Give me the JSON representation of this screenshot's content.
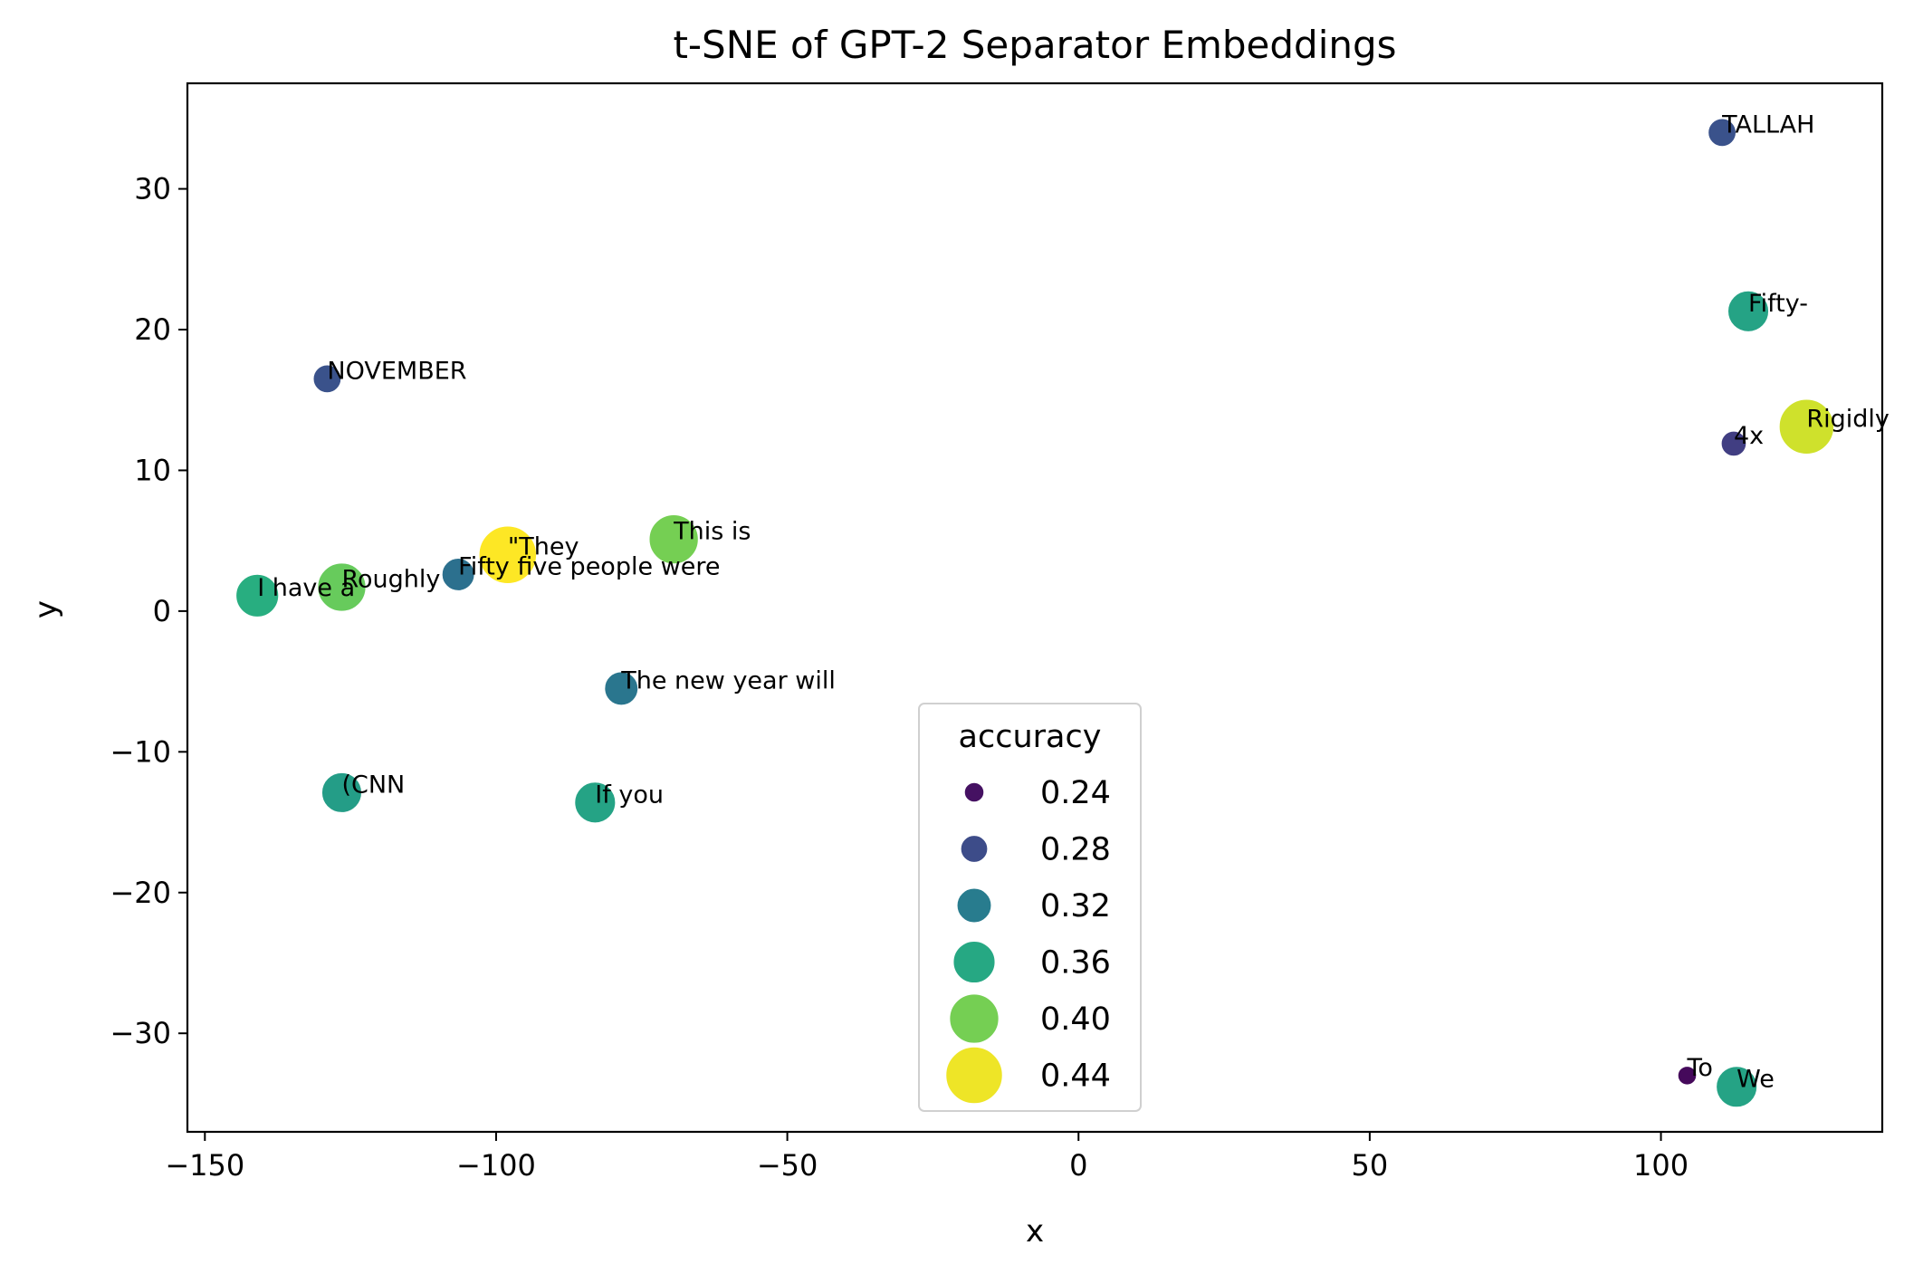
{
  "chart_data": {
    "type": "scatter",
    "title": "t-SNE of GPT-2 Separator Embeddings",
    "xlabel": "x",
    "ylabel": "y",
    "xlim": [
      -153,
      138
    ],
    "ylim": [
      -37,
      37.5
    ],
    "xticks": [
      -150,
      -100,
      -50,
      0,
      50,
      100
    ],
    "yticks": [
      -30,
      -20,
      -10,
      0,
      10,
      20,
      30
    ],
    "xtick_labels": [
      "−150",
      "−100",
      "−50",
      "0",
      "50",
      "100"
    ],
    "ytick_labels": [
      "−30",
      "−20",
      "−10",
      "0",
      "10",
      "20",
      "30"
    ],
    "grid": false,
    "colormap": "viridis",
    "color_range": [
      0.23,
      0.445
    ],
    "points": [
      {
        "label": "TALLAH",
        "x": 110.5,
        "y": 34.0,
        "accuracy": 0.285
      },
      {
        "label": "Fifty-",
        "x": 115.0,
        "y": 21.3,
        "accuracy": 0.355
      },
      {
        "label": "NOVEMBER",
        "x": -129.0,
        "y": 16.5,
        "accuracy": 0.285
      },
      {
        "label": "Rigidly",
        "x": 125.0,
        "y": 13.1,
        "accuracy": 0.43
      },
      {
        "label": "4x",
        "x": 112.5,
        "y": 11.9,
        "accuracy": 0.27
      },
      {
        "label": "This is",
        "x": -69.5,
        "y": 5.1,
        "accuracy": 0.4
      },
      {
        "label": "\"They",
        "x": -98.0,
        "y": 4.0,
        "accuracy": 0.445
      },
      {
        "label": "Fifty five people were",
        "x": -106.5,
        "y": 2.6,
        "accuracy": 0.31
      },
      {
        "label": "Roughly",
        "x": -126.5,
        "y": 1.7,
        "accuracy": 0.395
      },
      {
        "label": "I have a",
        "x": -141.0,
        "y": 1.1,
        "accuracy": 0.365
      },
      {
        "label": "The new year will",
        "x": -78.5,
        "y": -5.5,
        "accuracy": 0.315
      },
      {
        "label": "(CNN",
        "x": -126.5,
        "y": -12.9,
        "accuracy": 0.35
      },
      {
        "label": "If you",
        "x": -83.0,
        "y": -13.6,
        "accuracy": 0.355
      },
      {
        "label": "To",
        "x": 104.5,
        "y": -33.0,
        "accuracy": 0.235
      },
      {
        "label": "We",
        "x": 113.0,
        "y": -33.8,
        "accuracy": 0.355
      }
    ],
    "legend": {
      "title": "accuracy",
      "placement": "lower-center",
      "entries": [
        {
          "label": "0.24",
          "value": 0.24
        },
        {
          "label": "0.28",
          "value": 0.28
        },
        {
          "label": "0.32",
          "value": 0.32
        },
        {
          "label": "0.36",
          "value": 0.36
        },
        {
          "label": "0.40",
          "value": 0.4
        },
        {
          "label": "0.44",
          "value": 0.44
        }
      ]
    }
  }
}
